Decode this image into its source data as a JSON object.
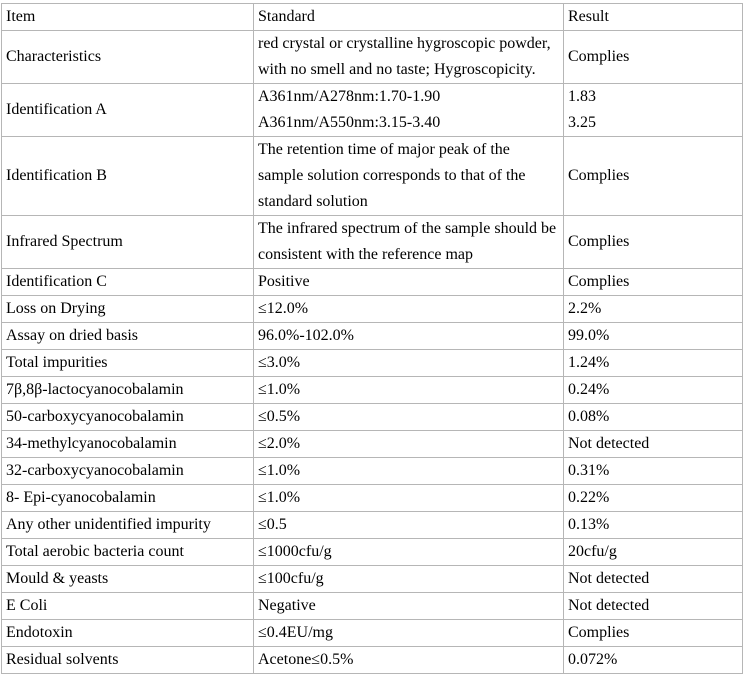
{
  "table": {
    "border_color": "#b6b6b6",
    "columns": [
      "Item",
      "Standard",
      "Result"
    ],
    "rows": [
      {
        "item": "Characteristics",
        "standard": "red crystal or crystalline hygroscopic powder, with no smell and no taste; Hygroscopicity.",
        "result": "Complies"
      },
      {
        "item": "Identification A",
        "standard": [
          "A361nm/A278nm:1.70-1.90",
          "A361nm/A550nm:3.15-3.40"
        ],
        "result": [
          "1.83",
          "3.25"
        ]
      },
      {
        "item": "Identification B",
        "standard": "The retention time of major peak of the sample solution corresponds to that of the standard solution",
        "result": "Complies"
      },
      {
        "item": "Infrared Spectrum",
        "standard": "The infrared spectrum of the sample should be consistent with the reference map",
        "result": "Complies"
      },
      {
        "item": "Identification C",
        "standard": "Positive",
        "result": "Complies"
      },
      {
        "item": "Loss on Drying",
        "standard": "≤12.0%",
        "result": "2.2%"
      },
      {
        "item": "Assay on dried basis",
        "standard": "96.0%-102.0%",
        "result": "99.0%"
      },
      {
        "item": "Total impurities",
        "standard": "≤3.0%",
        "result": "1.24%"
      },
      {
        "item": "7β,8β-lactocyanocobalamin",
        "standard": "≤1.0%",
        "result": "0.24%"
      },
      {
        "item": "50-carboxycyanocobalamin",
        "standard": "≤0.5%",
        "result": "0.08%"
      },
      {
        "item": "34-methylcyanocobalamin",
        "standard": "≤2.0%",
        "result": "Not detected"
      },
      {
        "item": "32-carboxycyanocobalamin",
        "standard": "≤1.0%",
        "result": "0.31%"
      },
      {
        "item": "8- Epi-cyanocobalamin",
        "standard": "≤1.0%",
        "result": "0.22%"
      },
      {
        "item": "Any other unidentified impurity",
        "standard": "≤0.5",
        "result": "0.13%"
      },
      {
        "item": "Total aerobic bacteria count",
        "standard": "≤1000cfu/g",
        "result": "20cfu/g"
      },
      {
        "item": "Mould & yeasts",
        "standard": "≤100cfu/g",
        "result": "Not detected"
      },
      {
        "item": "E Coli",
        "standard": "Negative",
        "result": "Not detected"
      },
      {
        "item": "Endotoxin",
        "standard": "≤0.4EU/mg",
        "result": "Complies"
      },
      {
        "item": "Residual solvents",
        "standard": "Acetone≤0.5%",
        "result": "0.072%"
      }
    ]
  }
}
